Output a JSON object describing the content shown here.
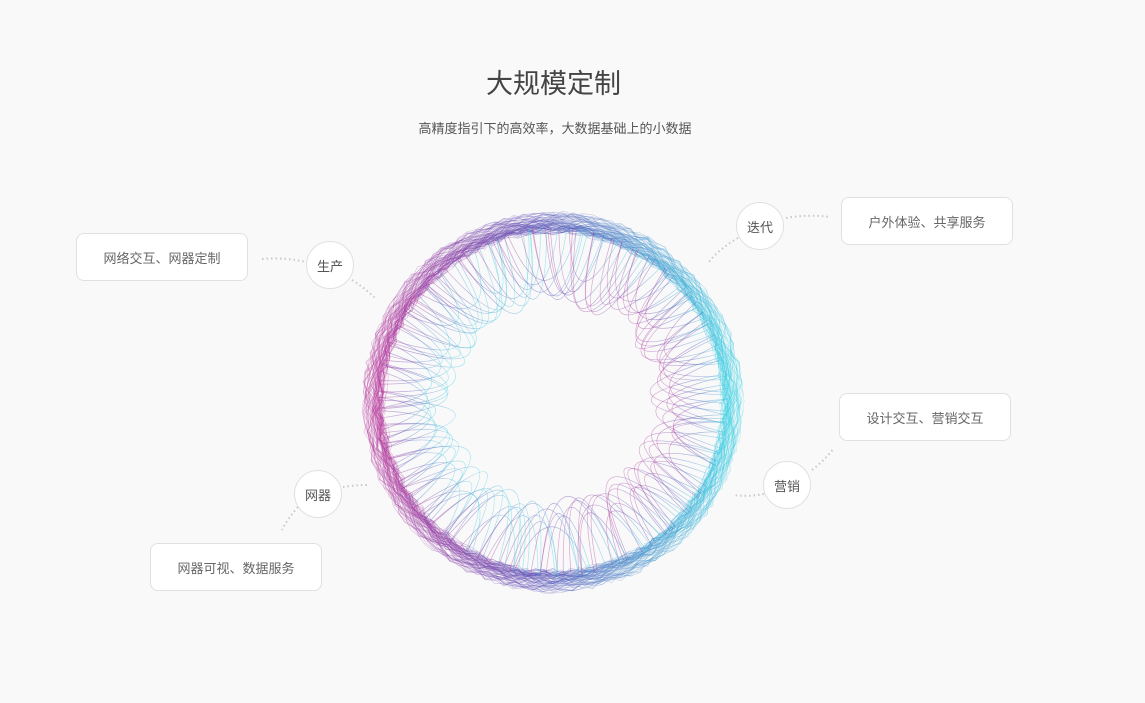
{
  "header": {
    "title": "大规模定制",
    "subtitle": "高精度指引下的高效率，大数据基础上的小数据"
  },
  "nodes": [
    {
      "label": "生产",
      "description": "网络交互、网器定制"
    },
    {
      "label": "迭代",
      "description": "户外体验、共享服务"
    },
    {
      "label": "营销",
      "description": "设计交互、营销交互"
    },
    {
      "label": "网器",
      "description": "网器可视、数据服务"
    }
  ],
  "colors": {
    "magenta": "#b83a9c",
    "purple": "#5b4fb5",
    "cyan": "#3fd2e4",
    "background": "#f9f9f9"
  }
}
